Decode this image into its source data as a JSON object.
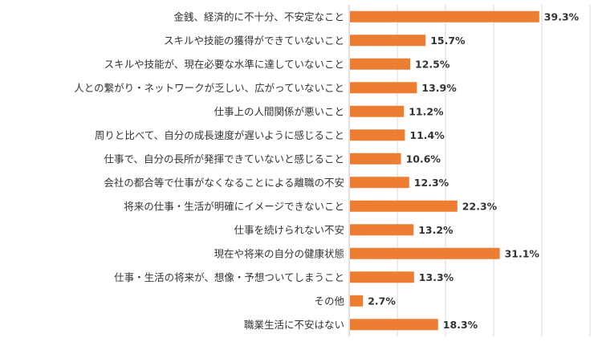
{
  "chart_data": {
    "type": "bar",
    "orientation": "horizontal",
    "categories": [
      "金銭、経済的に不十分、不安定なこと",
      "スキルや技能の獲得ができていないこと",
      "スキルや技能が、現在必要な水準に達していないこと",
      "人との繋がり・ネットワークが乏しい、広がっていないこと",
      "仕事上の人間関係が悪いこと",
      "周りと比べて、自分の成長速度が遅いように感じること",
      "仕事で、自分の長所が発揮できていないと感じること",
      "会社の都合等で仕事がなくなることによる離職の不安",
      "将来の仕事・生活が明確にイメージできないこと",
      "仕事を続けられない不安",
      "現在や将来の自分の健康状態",
      "仕事・生活の将来が、想像・予想ついてしまうこと",
      "その他",
      "職業生活に不安はない"
    ],
    "values": [
      39.3,
      15.7,
      12.5,
      13.9,
      11.2,
      11.4,
      10.6,
      12.3,
      22.3,
      13.2,
      31.1,
      13.3,
      2.7,
      18.3
    ],
    "value_labels": [
      "39.3%",
      "15.7%",
      "12.5%",
      "13.9%",
      "11.2%",
      "11.4%",
      "10.6%",
      "12.3%",
      "22.3%",
      "13.2%",
      "31.1%",
      "13.3%",
      "2.7%",
      "18.3%"
    ],
    "bar_color": "#ED7D31",
    "grid": true,
    "xlim": [
      0,
      50
    ],
    "title": "",
    "xlabel": "",
    "ylabel": ""
  }
}
